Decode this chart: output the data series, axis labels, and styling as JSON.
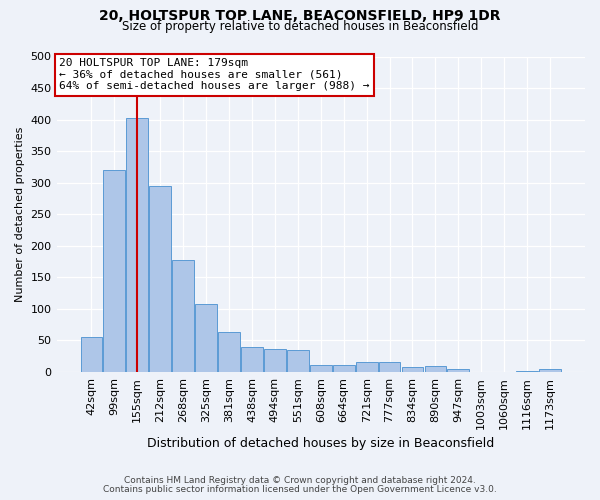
{
  "title": "20, HOLTSPUR TOP LANE, BEACONSFIELD, HP9 1DR",
  "subtitle": "Size of property relative to detached houses in Beaconsfield",
  "xlabel": "Distribution of detached houses by size in Beaconsfield",
  "ylabel": "Number of detached properties",
  "categories": [
    "42sqm",
    "99sqm",
    "155sqm",
    "212sqm",
    "268sqm",
    "325sqm",
    "381sqm",
    "438sqm",
    "494sqm",
    "551sqm",
    "608sqm",
    "664sqm",
    "721sqm",
    "777sqm",
    "834sqm",
    "890sqm",
    "947sqm",
    "1003sqm",
    "1060sqm",
    "1116sqm",
    "1173sqm"
  ],
  "values": [
    55,
    320,
    403,
    295,
    178,
    107,
    63,
    40,
    37,
    35,
    11,
    11,
    15,
    15,
    8,
    9,
    4,
    0,
    0,
    2,
    5
  ],
  "bar_color": "#aec6e8",
  "bar_edge_color": "#5b9bd5",
  "marker_bin_index": 2,
  "annotation_text": "20 HOLTSPUR TOP LANE: 179sqm\n← 36% of detached houses are smaller (561)\n64% of semi-detached houses are larger (988) →",
  "annotation_box_color": "#ffffff",
  "annotation_box_edge_color": "#cc0000",
  "vline_color": "#cc0000",
  "footer_line1": "Contains HM Land Registry data © Crown copyright and database right 2024.",
  "footer_line2": "Contains public sector information licensed under the Open Government Licence v3.0.",
  "background_color": "#eef2f9",
  "ylim": [
    0,
    500
  ],
  "yticks": [
    0,
    50,
    100,
    150,
    200,
    250,
    300,
    350,
    400,
    450,
    500
  ]
}
